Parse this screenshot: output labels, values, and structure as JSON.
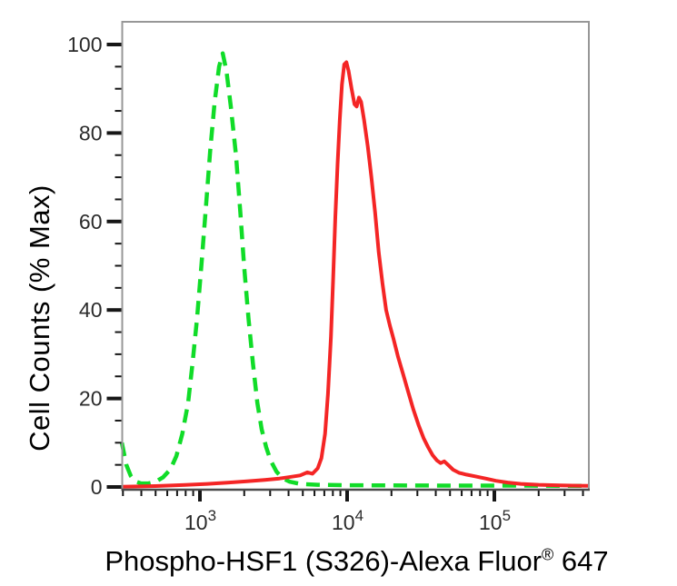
{
  "figure": {
    "background": "#ffffff",
    "y_axis_title": "Cell Counts (% Max)",
    "x_axis_title_main": "Phospho-HSF1 (S326)-Alexa Fluor",
    "x_axis_title_sup": "®",
    "x_axis_title_end": " 647"
  },
  "style": {
    "border_color": "#979797",
    "bottom_axis_color": "#4a4a4a",
    "tick_color": "#161616",
    "tick_label_color": "#2b2b2b",
    "green": "#10dc28",
    "red": "#f42525"
  },
  "chart_data": {
    "type": "line",
    "description": "Flow cytometry histogram overlay: green dashed control vs red solid Phospho-HSF1 (S326) stained population",
    "title": "",
    "xlabel": "Phospho-HSF1 (S326)-Alexa Fluor® 647",
    "ylabel": "Cell Counts (% Max)",
    "x_scale": "log10",
    "x_range_log10": [
      2.47,
      5.642
    ],
    "x_tick_exponents": [
      3,
      4,
      5
    ],
    "x_tick_labels": [
      "10^3",
      "10^4",
      "10^5"
    ],
    "x_minor_ticks": "log mantissas 2-9 per decade",
    "ylim": [
      0,
      100
    ],
    "y_major_ticks": [
      0,
      20,
      40,
      60,
      80,
      100
    ],
    "y_minor_step": 5,
    "grid": false,
    "legend": "none",
    "series": [
      {
        "name": "green-dashed-histogram",
        "line_style": "dashed",
        "color": "#10dc28",
        "peak_x_log10": 3.155,
        "peak_y_percent": 98,
        "points_log10x_ypercent": [
          [
            2.47,
            10
          ],
          [
            2.5,
            5
          ],
          [
            2.53,
            2.5
          ],
          [
            2.56,
            1.3
          ],
          [
            2.6,
            0.8
          ],
          [
            2.65,
            0.8
          ],
          [
            2.7,
            1.2
          ],
          [
            2.75,
            2.2
          ],
          [
            2.8,
            4
          ],
          [
            2.84,
            7
          ],
          [
            2.88,
            12
          ],
          [
            2.92,
            19
          ],
          [
            2.95,
            28
          ],
          [
            2.98,
            38
          ],
          [
            3.01,
            50
          ],
          [
            3.04,
            63
          ],
          [
            3.07,
            76
          ],
          [
            3.1,
            87
          ],
          [
            3.13,
            95
          ],
          [
            3.155,
            98
          ],
          [
            3.18,
            94
          ],
          [
            3.21,
            86
          ],
          [
            3.245,
            75
          ],
          [
            3.275,
            62
          ],
          [
            3.3,
            50
          ],
          [
            3.33,
            38
          ],
          [
            3.36,
            28
          ],
          [
            3.39,
            19
          ],
          [
            3.42,
            13
          ],
          [
            3.45,
            9
          ],
          [
            3.48,
            6
          ],
          [
            3.52,
            3.5
          ],
          [
            3.56,
            2
          ],
          [
            3.61,
            1.2
          ],
          [
            3.68,
            0.7
          ],
          [
            3.8,
            0.5
          ],
          [
            4.0,
            0.4
          ],
          [
            4.3,
            0.35
          ],
          [
            4.7,
            0.3
          ],
          [
            5.1,
            0.3
          ],
          [
            5.642,
            0.25
          ]
        ]
      },
      {
        "name": "red-solid-histogram",
        "line_style": "solid",
        "color": "#f42525",
        "peak_x_log10": 3.99,
        "peak_y_percent": 96,
        "points_log10x_ypercent": [
          [
            2.47,
            0.05
          ],
          [
            2.7,
            0.2
          ],
          [
            2.9,
            0.45
          ],
          [
            3.05,
            0.7
          ],
          [
            3.2,
            1.0
          ],
          [
            3.32,
            1.3
          ],
          [
            3.44,
            1.6
          ],
          [
            3.54,
            1.9
          ],
          [
            3.62,
            2.3
          ],
          [
            3.68,
            2.6
          ],
          [
            3.73,
            3.3
          ],
          [
            3.765,
            3.0
          ],
          [
            3.8,
            4.2
          ],
          [
            3.825,
            6.5
          ],
          [
            3.85,
            12
          ],
          [
            3.87,
            21
          ],
          [
            3.89,
            34
          ],
          [
            3.905,
            47
          ],
          [
            3.92,
            61
          ],
          [
            3.935,
            73
          ],
          [
            3.95,
            83
          ],
          [
            3.965,
            91
          ],
          [
            3.98,
            95.5
          ],
          [
            3.995,
            96
          ],
          [
            4.01,
            94
          ],
          [
            4.03,
            90
          ],
          [
            4.05,
            86.5
          ],
          [
            4.065,
            86
          ],
          [
            4.08,
            88
          ],
          [
            4.095,
            87
          ],
          [
            4.115,
            83
          ],
          [
            4.14,
            77
          ],
          [
            4.165,
            70
          ],
          [
            4.19,
            62
          ],
          [
            4.215,
            53
          ],
          [
            4.24,
            46
          ],
          [
            4.265,
            40
          ],
          [
            4.29,
            36.5
          ],
          [
            4.315,
            33.5
          ],
          [
            4.345,
            29.5
          ],
          [
            4.38,
            25.5
          ],
          [
            4.415,
            21.5
          ],
          [
            4.45,
            17.5
          ],
          [
            4.485,
            14
          ],
          [
            4.52,
            11
          ],
          [
            4.55,
            9
          ],
          [
            4.58,
            7.2
          ],
          [
            4.61,
            6.0
          ],
          [
            4.635,
            5.4
          ],
          [
            4.66,
            5.8
          ],
          [
            4.685,
            5.0
          ],
          [
            4.72,
            3.9
          ],
          [
            4.76,
            3.2
          ],
          [
            4.81,
            2.8
          ],
          [
            4.87,
            2.4
          ],
          [
            4.94,
            1.9
          ],
          [
            5.01,
            1.4
          ],
          [
            5.09,
            1.0
          ],
          [
            5.18,
            0.7
          ],
          [
            5.3,
            0.5
          ],
          [
            5.45,
            0.35
          ],
          [
            5.642,
            0.25
          ]
        ]
      }
    ]
  }
}
